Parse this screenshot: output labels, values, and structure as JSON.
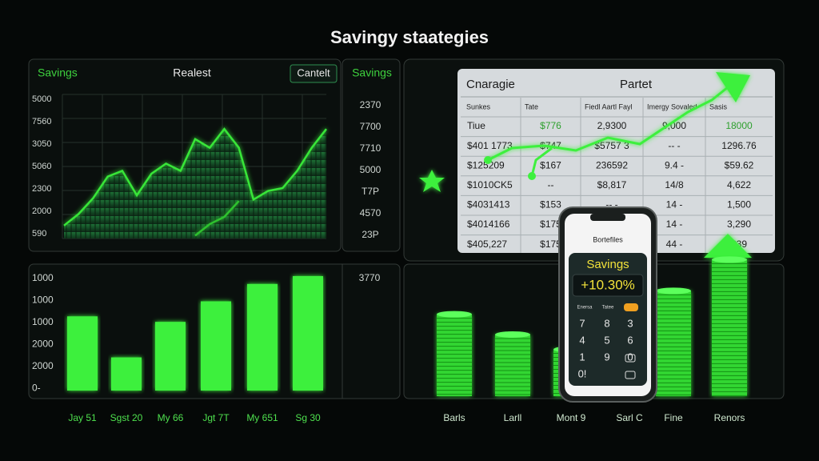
{
  "title": "Savingy staategies",
  "trend_panel": {
    "tabs": [
      "Savings",
      "Realest"
    ],
    "button": "Cantelt",
    "side_title": "Savings",
    "y_labels": [
      "5000",
      "7560",
      "3050",
      "5060",
      "2300",
      "2000",
      "590"
    ],
    "side_labels": [
      "2370",
      "7700",
      "7710",
      "5000",
      "T7P",
      "4570",
      "23P"
    ],
    "ylim": [
      0,
      100
    ],
    "series": [
      {
        "color": "#39e639",
        "values": [
          9,
          17,
          28,
          43,
          47,
          30,
          45,
          52,
          47,
          69,
          63,
          76,
          63,
          27,
          33,
          35,
          47,
          63,
          76
        ]
      },
      {
        "color": "#2fc22f",
        "values": [
          null,
          null,
          null,
          null,
          null,
          null,
          null,
          null,
          null,
          2,
          10,
          15,
          26,
          null,
          null,
          null,
          null,
          null,
          null
        ]
      }
    ]
  },
  "table": {
    "headers": [
      "Cnaragie",
      "Partet"
    ],
    "columns": [
      "Sunkes",
      "Tate",
      "Fiedl Aartl Fayl",
      "Imergy Sovaled",
      "Sasis"
    ],
    "rows": [
      [
        "Tiue",
        "$776",
        "2,9300",
        "9,000",
        "18000"
      ],
      [
        "$401 1773",
        "$747",
        "$5757 3",
        "-- -",
        "1296.76"
      ],
      [
        "$125209",
        "$167",
        "236592",
        "9.4 -",
        "$59.62"
      ],
      [
        "$1010CK5",
        "--",
        "$8,817",
        "14/8",
        "4,622"
      ],
      [
        "$4031413",
        "$153",
        "-- -",
        "14 -",
        "1,500"
      ],
      [
        "$4014166",
        "$175",
        "-- -",
        "14 -",
        "3,290"
      ],
      [
        "$405,227",
        "$175",
        "-- -",
        "44 -",
        "$39"
      ]
    ]
  },
  "bar_panel": {
    "y_labels": [
      "1000",
      "1000",
      "1000",
      "2000",
      "2000",
      "0-"
    ],
    "side_label": "3770",
    "categories": [
      "Jay 51",
      "Sgst 20",
      "My 66",
      "Jgt 7T",
      "My 651",
      "Sg 30"
    ],
    "values": [
      94,
      42,
      87,
      113,
      135,
      145
    ],
    "ylim": [
      0,
      150
    ],
    "color": "#3ef03e"
  },
  "coin_panel": {
    "categories": [
      "Barls",
      "Larll",
      "Mont 9",
      "Sarl C",
      "Fine",
      "Renors"
    ],
    "values": [
      105,
      79,
      60,
      90,
      135,
      175
    ],
    "ylim": [
      0,
      200
    ],
    "color": "#33d633"
  },
  "phone": {
    "header": "Bortefiles",
    "label": "Savings",
    "value": "+10.30%",
    "buttons": [
      "Enersa",
      "Tatee"
    ],
    "keys": [
      "7",
      "8",
      "3",
      "4",
      "5",
      "6",
      "1",
      "9",
      "0",
      "0!"
    ]
  }
}
